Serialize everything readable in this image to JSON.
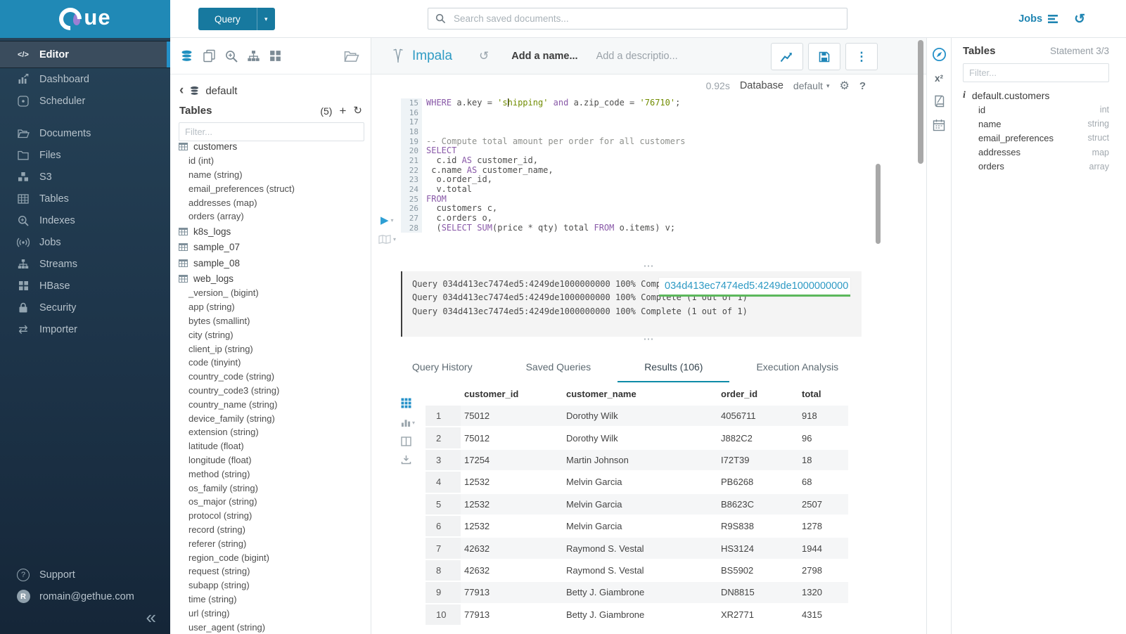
{
  "colors": {
    "accent": "#2490c8",
    "query_button": "#17799f",
    "logo_bg": "#2089b6",
    "keyword": "#8959a8",
    "string": "#718c00",
    "comment": "#8e908c",
    "tab_underline": "#0e8ba8",
    "popup_underline": "#5cb85c",
    "sidebar_active_bar": "#2490c8"
  },
  "brand": {
    "logo_text": "ue"
  },
  "sidebar": {
    "items": [
      {
        "label": "Editor"
      },
      {
        "label": "Dashboard"
      },
      {
        "label": "Scheduler"
      },
      {
        "label": "Documents"
      },
      {
        "label": "Files"
      },
      {
        "label": "S3"
      },
      {
        "label": "Tables"
      },
      {
        "label": "Indexes"
      },
      {
        "label": "Jobs"
      },
      {
        "label": "Streams"
      },
      {
        "label": "HBase"
      },
      {
        "label": "Security"
      },
      {
        "label": "Importer"
      }
    ],
    "footer": [
      {
        "label": "Support"
      },
      {
        "label": "romain@gethue.com"
      }
    ],
    "user_initial": "R"
  },
  "topbar": {
    "query_button": "Query",
    "search_placeholder": "Search saved documents...",
    "jobs_label": "Jobs"
  },
  "left_assist": {
    "breadcrumb": "default",
    "tables_header": "Tables",
    "tables_count": "(5)",
    "filter_placeholder": "Filter...",
    "tables": [
      {
        "name": "customers",
        "columns": [
          "id (int)",
          "name (string)",
          "email_preferences (struct)",
          "addresses (map)",
          "orders (array)"
        ]
      },
      {
        "name": "k8s_logs",
        "columns": []
      },
      {
        "name": "sample_07",
        "columns": []
      },
      {
        "name": "sample_08",
        "columns": []
      },
      {
        "name": "web_logs",
        "columns": [
          "_version_ (bigint)",
          "app (string)",
          "bytes (smallint)",
          "city (string)",
          "client_ip (string)",
          "code (tinyint)",
          "country_code (string)",
          "country_code3 (string)",
          "country_name (string)",
          "device_family (string)",
          "extension (string)",
          "latitude (float)",
          "longitude (float)",
          "method (string)",
          "os_family (string)",
          "os_major (string)",
          "protocol (string)",
          "record (string)",
          "referer (string)",
          "region_code (bigint)",
          "request (string)",
          "subapp (string)",
          "time (string)",
          "url (string)",
          "user_agent (string)"
        ]
      }
    ]
  },
  "editor": {
    "engine": "Impala",
    "name_placeholder": "Add a name...",
    "description_placeholder": "Add a descriptio...",
    "exec_time": "0.92s",
    "database_label": "Database",
    "database_value": "default",
    "code_lines": [
      {
        "n": 15,
        "segments": [
          {
            "t": "WHERE",
            "c": "kw"
          },
          {
            "t": " a.key ",
            "c": "pl"
          },
          {
            "t": "=",
            "c": "op"
          },
          {
            "t": " ",
            "c": "pl"
          },
          {
            "t": "'s",
            "c": "str"
          },
          {
            "t": "",
            "c": "caret"
          },
          {
            "t": "hipping'",
            "c": "str"
          },
          {
            "t": " ",
            "c": "pl"
          },
          {
            "t": "and",
            "c": "kw"
          },
          {
            "t": " a.zip_code ",
            "c": "pl"
          },
          {
            "t": "=",
            "c": "op"
          },
          {
            "t": " ",
            "c": "pl"
          },
          {
            "t": "'76710'",
            "c": "str"
          },
          {
            "t": ";",
            "c": "pl"
          }
        ]
      },
      {
        "n": 16,
        "segments": []
      },
      {
        "n": 17,
        "segments": []
      },
      {
        "n": 18,
        "segments": []
      },
      {
        "n": 19,
        "segments": [
          {
            "t": "-- Compute total amount per order for all customers",
            "c": "com"
          }
        ]
      },
      {
        "n": 20,
        "segments": [
          {
            "t": "SELECT",
            "c": "kw"
          }
        ]
      },
      {
        "n": 21,
        "segments": [
          {
            "t": "  c.id ",
            "c": "pl"
          },
          {
            "t": "AS",
            "c": "kw"
          },
          {
            "t": " customer_id,",
            "c": "pl"
          }
        ]
      },
      {
        "n": 22,
        "segments": [
          {
            "t": " c.name ",
            "c": "pl"
          },
          {
            "t": "AS",
            "c": "kw"
          },
          {
            "t": " customer_name,",
            "c": "pl"
          }
        ]
      },
      {
        "n": 23,
        "segments": [
          {
            "t": "  o.order_id,",
            "c": "pl"
          }
        ]
      },
      {
        "n": 24,
        "segments": [
          {
            "t": "  v.total",
            "c": "pl"
          }
        ]
      },
      {
        "n": 25,
        "segments": [
          {
            "t": "FROM",
            "c": "kw"
          }
        ]
      },
      {
        "n": 26,
        "segments": [
          {
            "t": "  customers c,",
            "c": "pl"
          }
        ]
      },
      {
        "n": 27,
        "segments": [
          {
            "t": "  c.orders o,",
            "c": "pl"
          }
        ]
      },
      {
        "n": 28,
        "segments": [
          {
            "t": "  (",
            "c": "pl"
          },
          {
            "t": "SELECT",
            "c": "kw"
          },
          {
            "t": " ",
            "c": "pl"
          },
          {
            "t": "SUM",
            "c": "kw"
          },
          {
            "t": "(price ",
            "c": "pl"
          },
          {
            "t": "*",
            "c": "op"
          },
          {
            "t": " qty) total ",
            "c": "pl"
          },
          {
            "t": "FROM",
            "c": "kw"
          },
          {
            "t": " o.items) v;",
            "c": "pl"
          }
        ]
      }
    ]
  },
  "logs": {
    "lines": [
      "Query 034d413ec7474ed5:4249de1000000000 100% Complete (1 out of 1)",
      "Query 034d413ec7474ed5:4249de1000000000 100% Complete (1 out of 1)",
      "Query 034d413ec7474ed5:4249de1000000000 100% Complete (1 out of 1)"
    ],
    "popup": "034d413ec7474ed5:4249de1000000000"
  },
  "tabs": [
    "Query History",
    "Saved Queries",
    "Results (106)",
    "Execution Analysis"
  ],
  "results": {
    "headers": [
      "",
      "customer_id",
      "customer_name",
      "order_id",
      "total"
    ],
    "rows": [
      [
        "1",
        "75012",
        "Dorothy Wilk",
        "4056711",
        "918"
      ],
      [
        "2",
        "75012",
        "Dorothy Wilk",
        "J882C2",
        "96"
      ],
      [
        "3",
        "17254",
        "Martin Johnson",
        "I72T39",
        "18"
      ],
      [
        "4",
        "12532",
        "Melvin Garcia",
        "PB6268",
        "68"
      ],
      [
        "5",
        "12532",
        "Melvin Garcia",
        "B8623C",
        "2507"
      ],
      [
        "6",
        "12532",
        "Melvin Garcia",
        "R9S838",
        "1278"
      ],
      [
        "7",
        "42632",
        "Raymond S. Vestal",
        "HS3124",
        "1944"
      ],
      [
        "8",
        "42632",
        "Raymond S. Vestal",
        "BS5902",
        "2798"
      ],
      [
        "9",
        "77913",
        "Betty J. Giambrone",
        "DN8815",
        "1320"
      ],
      [
        "10",
        "77913",
        "Betty J. Giambrone",
        "XR2771",
        "4315"
      ]
    ]
  },
  "right_assist": {
    "title": "Tables",
    "statement": "Statement 3/3",
    "filter_placeholder": "Filter...",
    "table": "default.customers",
    "columns": [
      {
        "name": "id",
        "type": "int"
      },
      {
        "name": "name",
        "type": "string"
      },
      {
        "name": "email_preferences",
        "type": "struct"
      },
      {
        "name": "addresses",
        "type": "map"
      },
      {
        "name": "orders",
        "type": "array"
      }
    ]
  }
}
